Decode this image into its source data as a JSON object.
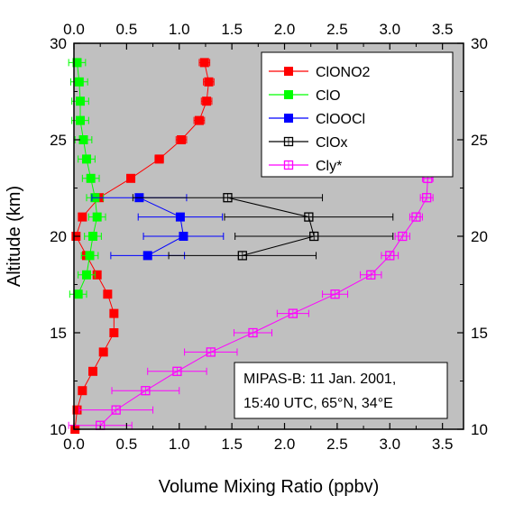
{
  "chart_data": {
    "type": "scatter",
    "title": "",
    "xlabel": "Volume Mixing Ratio (ppbv)",
    "ylabel": "Altitude (km)",
    "xlim": [
      0,
      3.7
    ],
    "ylim": [
      10,
      30
    ],
    "xticks": [
      0.0,
      0.5,
      1.0,
      1.5,
      2.0,
      2.5,
      3.0,
      3.5
    ],
    "xtick_labels": [
      "0.0",
      "0.5",
      "1.0",
      "1.5",
      "2.0",
      "2.5",
      "3.0",
      "3.5"
    ],
    "yticks": [
      10,
      15,
      20,
      25,
      30
    ],
    "ytick_labels": [
      "10",
      "15",
      "20",
      "25",
      "30"
    ],
    "x_axis_top_mirrored": true,
    "y_axis_right_mirrored": true,
    "grid": false,
    "background": "#c0c0c0",
    "legend_position": "top-right",
    "annotation": [
      "MIPAS-B: 11 Jan. 2001,",
      "15:40 UTC, 65°N, 34°E"
    ],
    "series": [
      {
        "name": "ClONO2",
        "color": "#ff0000",
        "marker": "filled-square",
        "points": [
          {
            "x": 1.24,
            "y": 29.0,
            "xerr": 0.05
          },
          {
            "x": 1.28,
            "y": 28.0,
            "xerr": 0.05
          },
          {
            "x": 1.26,
            "y": 27.0,
            "xerr": 0.05
          },
          {
            "x": 1.19,
            "y": 26.0,
            "xerr": 0.05
          },
          {
            "x": 1.02,
            "y": 25.0,
            "xerr": 0.05
          },
          {
            "x": 0.81,
            "y": 24.0,
            "xerr": 0.04
          },
          {
            "x": 0.54,
            "y": 23.0,
            "xerr": 0.03
          },
          {
            "x": 0.24,
            "y": 22.0,
            "xerr": 0.02
          },
          {
            "x": 0.08,
            "y": 21.0,
            "xerr": 0.02
          },
          {
            "x": 0.02,
            "y": 20.0,
            "xerr": 0.02
          },
          {
            "x": 0.12,
            "y": 19.0,
            "xerr": 0.02
          },
          {
            "x": 0.22,
            "y": 18.0,
            "xerr": 0.02
          },
          {
            "x": 0.32,
            "y": 17.0,
            "xerr": 0.02
          },
          {
            "x": 0.38,
            "y": 16.0,
            "xerr": 0.02
          },
          {
            "x": 0.38,
            "y": 15.0,
            "xerr": 0.02
          },
          {
            "x": 0.28,
            "y": 14.0,
            "xerr": 0.02
          },
          {
            "x": 0.18,
            "y": 13.0,
            "xerr": 0.02
          },
          {
            "x": 0.08,
            "y": 12.0,
            "xerr": 0.02
          },
          {
            "x": 0.03,
            "y": 11.0,
            "xerr": 0.02
          },
          {
            "x": 0.01,
            "y": 10.0,
            "xerr": 0.02
          }
        ]
      },
      {
        "name": "ClO",
        "color": "#00ff00",
        "marker": "filled-square",
        "points": [
          {
            "x": 0.03,
            "y": 29.0,
            "xerr": 0.08
          },
          {
            "x": 0.05,
            "y": 28.0,
            "xerr": 0.08
          },
          {
            "x": 0.06,
            "y": 27.0,
            "xerr": 0.08
          },
          {
            "x": 0.06,
            "y": 26.0,
            "xerr": 0.08
          },
          {
            "x": 0.09,
            "y": 25.0,
            "xerr": 0.08
          },
          {
            "x": 0.12,
            "y": 24.0,
            "xerr": 0.08
          },
          {
            "x": 0.16,
            "y": 23.0,
            "xerr": 0.08
          },
          {
            "x": 0.2,
            "y": 22.0,
            "xerr": 0.08
          },
          {
            "x": 0.22,
            "y": 21.0,
            "xerr": 0.08
          },
          {
            "x": 0.18,
            "y": 20.0,
            "xerr": 0.08
          },
          {
            "x": 0.15,
            "y": 19.0,
            "xerr": 0.08
          },
          {
            "x": 0.12,
            "y": 18.0,
            "xerr": 0.08
          },
          {
            "x": 0.04,
            "y": 17.0,
            "xerr": 0.08
          }
        ]
      },
      {
        "name": "ClOOCl",
        "color": "#0000ff",
        "marker": "filled-square",
        "points": [
          {
            "x": 0.62,
            "y": 22.0,
            "xerr": 0.45
          },
          {
            "x": 1.01,
            "y": 21.0,
            "xerr": 0.4
          },
          {
            "x": 1.04,
            "y": 20.0,
            "xerr": 0.38
          },
          {
            "x": 0.7,
            "y": 19.0,
            "xerr": 0.35
          }
        ]
      },
      {
        "name": "ClOx",
        "color": "#000000",
        "marker": "open-square",
        "points": [
          {
            "x": 1.46,
            "y": 22.0,
            "xerr": 0.9
          },
          {
            "x": 2.23,
            "y": 21.0,
            "xerr": 0.8
          },
          {
            "x": 2.28,
            "y": 20.0,
            "xerr": 0.75
          },
          {
            "x": 1.6,
            "y": 19.0,
            "xerr": 0.7
          }
        ]
      },
      {
        "name": "Cly*",
        "color": "#ff00ff",
        "marker": "open-square",
        "points": [
          {
            "x": 3.5,
            "y": 29.0,
            "xerr": 0.05
          },
          {
            "x": 3.5,
            "y": 28.0,
            "xerr": 0.05
          },
          {
            "x": 3.49,
            "y": 27.0,
            "xerr": 0.05
          },
          {
            "x": 3.48,
            "y": 26.0,
            "xerr": 0.05
          },
          {
            "x": 3.44,
            "y": 25.0,
            "xerr": 0.05
          },
          {
            "x": 3.38,
            "y": 24.0,
            "xerr": 0.05
          },
          {
            "x": 3.36,
            "y": 23.0,
            "xerr": 0.05
          },
          {
            "x": 3.35,
            "y": 22.0,
            "xerr": 0.06
          },
          {
            "x": 3.25,
            "y": 21.0,
            "xerr": 0.06
          },
          {
            "x": 3.12,
            "y": 20.0,
            "xerr": 0.07
          },
          {
            "x": 3.0,
            "y": 19.0,
            "xerr": 0.08
          },
          {
            "x": 2.82,
            "y": 18.0,
            "xerr": 0.1
          },
          {
            "x": 2.48,
            "y": 17.0,
            "xerr": 0.12
          },
          {
            "x": 2.08,
            "y": 16.0,
            "xerr": 0.15
          },
          {
            "x": 1.7,
            "y": 15.0,
            "xerr": 0.18
          },
          {
            "x": 1.3,
            "y": 14.0,
            "xerr": 0.25
          },
          {
            "x": 0.98,
            "y": 13.0,
            "xerr": 0.28
          },
          {
            "x": 0.68,
            "y": 12.0,
            "xerr": 0.32
          },
          {
            "x": 0.4,
            "y": 11.0,
            "xerr": 0.35
          },
          {
            "x": 0.25,
            "y": 10.2,
            "xerr": 0.3
          }
        ]
      }
    ]
  }
}
